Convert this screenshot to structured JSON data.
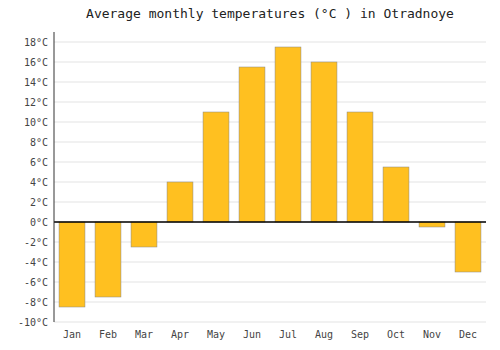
{
  "chart_data": {
    "type": "bar",
    "title": "Average monthly temperatures (°C ) in Otradnoye",
    "categories": [
      "Jan",
      "Feb",
      "Mar",
      "Apr",
      "May",
      "Jun",
      "Jul",
      "Aug",
      "Sep",
      "Oct",
      "Nov",
      "Dec"
    ],
    "values": [
      -8.5,
      -7.5,
      -2.5,
      4.0,
      11.0,
      15.5,
      17.5,
      16.0,
      11.0,
      5.5,
      -0.5,
      -5.0
    ],
    "color": "#FFC020",
    "ylim": [
      -10,
      19
    ],
    "yticks": [
      {
        "value": -10,
        "label": "-10°C"
      },
      {
        "value": -8,
        "label": "-8°C"
      },
      {
        "value": -6,
        "label": "-6°C"
      },
      {
        "value": -4,
        "label": "-4°C"
      },
      {
        "value": -2,
        "label": "-2°C"
      },
      {
        "value": 0,
        "label": "0°C"
      },
      {
        "value": 2,
        "label": "2°C"
      },
      {
        "value": 4,
        "label": "4°C"
      },
      {
        "value": 6,
        "label": "6°C"
      },
      {
        "value": 8,
        "label": "8°C"
      },
      {
        "value": 10,
        "label": "10°C"
      },
      {
        "value": 12,
        "label": "12°C"
      },
      {
        "value": 14,
        "label": "14°C"
      },
      {
        "value": 16,
        "label": "16°C"
      },
      {
        "value": 18,
        "label": "18°C"
      }
    ],
    "grid": true
  }
}
